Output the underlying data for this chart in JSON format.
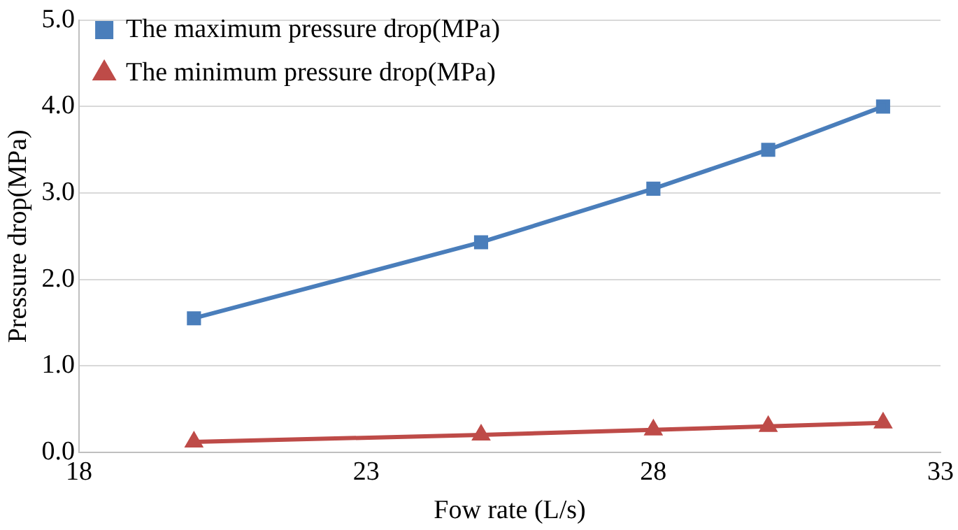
{
  "chart_data": {
    "type": "line",
    "xlabel": "Fow rate (L/s)",
    "ylabel": "Pressure drop(MPa)",
    "x": [
      20,
      25,
      28,
      30,
      32
    ],
    "xlim": [
      18,
      33
    ],
    "xticks": [
      18,
      23,
      28,
      33
    ],
    "ylim": [
      0,
      5
    ],
    "yticks": [
      {
        "value": 0,
        "label": "0.0"
      },
      {
        "value": 1,
        "label": "1.0"
      },
      {
        "value": 2,
        "label": "2.0"
      },
      {
        "value": 3,
        "label": "3.0"
      },
      {
        "value": 4,
        "label": "4.0"
      },
      {
        "value": 5,
        "label": "5.0"
      }
    ],
    "grid": "y",
    "legend": "top left",
    "line_style": "solid",
    "series": [
      {
        "name": "The maximum pressure drop(MPa)",
        "color": "#4a7ebb",
        "marker": "square",
        "values": [
          1.55,
          2.43,
          3.05,
          3.5,
          4.0
        ]
      },
      {
        "name": "The minimum pressure drop(MPa)",
        "color": "#be4b48",
        "marker": "triangle",
        "values": [
          0.12,
          0.2,
          0.26,
          0.3,
          0.34
        ]
      }
    ]
  }
}
